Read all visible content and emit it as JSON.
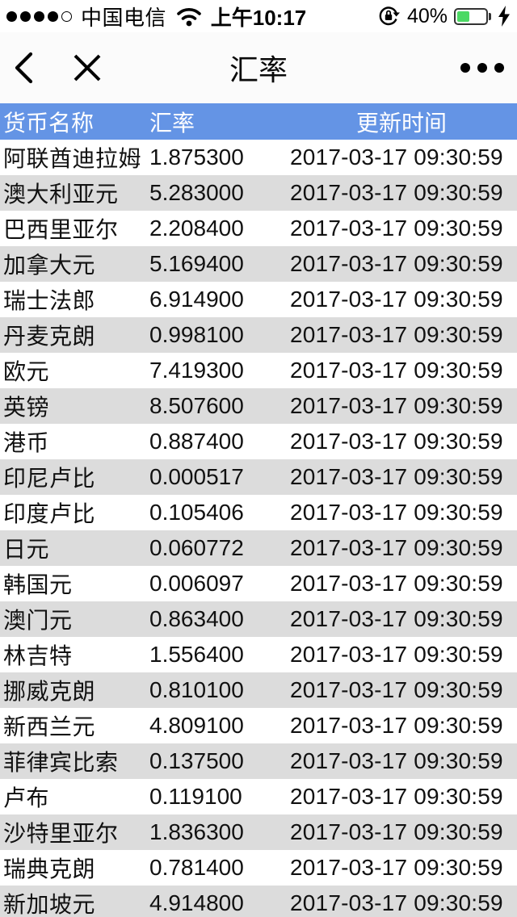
{
  "status_bar": {
    "signal": {
      "filled_dots": 4,
      "empty_dots": 1
    },
    "carrier": "中国电信",
    "time": "上午10:17",
    "battery_percent": "40%",
    "battery_color": "#4cd964",
    "icons": {
      "wifi": "wifi-icon",
      "orientation_lock": "orientation-lock-icon",
      "charging_bolt": "charging-bolt-icon"
    }
  },
  "nav_bar": {
    "title": "汇率",
    "icons": {
      "back": "back-chevron-icon",
      "close": "close-x-icon",
      "more": "more-dots-icon"
    }
  },
  "table": {
    "header_bg": "#6494e5",
    "alt_row_bg": "#dcdcdc",
    "header": {
      "name": "货币名称",
      "rate": "汇率",
      "time": "更新时间"
    },
    "rows": [
      {
        "name": "阿联酋迪拉姆",
        "rate": "1.875300",
        "time": "2017-03-17 09:30:59"
      },
      {
        "name": "澳大利亚元",
        "rate": "5.283000",
        "time": "2017-03-17 09:30:59"
      },
      {
        "name": "巴西里亚尔",
        "rate": "2.208400",
        "time": "2017-03-17 09:30:59"
      },
      {
        "name": "加拿大元",
        "rate": "5.169400",
        "time": "2017-03-17 09:30:59"
      },
      {
        "name": "瑞士法郎",
        "rate": "6.914900",
        "time": "2017-03-17 09:30:59"
      },
      {
        "name": "丹麦克朗",
        "rate": "0.998100",
        "time": "2017-03-17 09:30:59"
      },
      {
        "name": "欧元",
        "rate": "7.419300",
        "time": "2017-03-17 09:30:59"
      },
      {
        "name": "英镑",
        "rate": "8.507600",
        "time": "2017-03-17 09:30:59"
      },
      {
        "name": "港币",
        "rate": "0.887400",
        "time": "2017-03-17 09:30:59"
      },
      {
        "name": "印尼卢比",
        "rate": "0.000517",
        "time": "2017-03-17 09:30:59"
      },
      {
        "name": "印度卢比",
        "rate": "0.105406",
        "time": "2017-03-17 09:30:59"
      },
      {
        "name": "日元",
        "rate": "0.060772",
        "time": "2017-03-17 09:30:59"
      },
      {
        "name": "韩国元",
        "rate": "0.006097",
        "time": "2017-03-17 09:30:59"
      },
      {
        "name": "澳门元",
        "rate": "0.863400",
        "time": "2017-03-17 09:30:59"
      },
      {
        "name": "林吉特",
        "rate": "1.556400",
        "time": "2017-03-17 09:30:59"
      },
      {
        "name": "挪威克朗",
        "rate": "0.810100",
        "time": "2017-03-17 09:30:59"
      },
      {
        "name": "新西兰元",
        "rate": "4.809100",
        "time": "2017-03-17 09:30:59"
      },
      {
        "name": "菲律宾比索",
        "rate": "0.137500",
        "time": "2017-03-17 09:30:59"
      },
      {
        "name": "卢布",
        "rate": "0.119100",
        "time": "2017-03-17 09:30:59"
      },
      {
        "name": "沙特里亚尔",
        "rate": "1.836300",
        "time": "2017-03-17 09:30:59"
      },
      {
        "name": "瑞典克朗",
        "rate": "0.781400",
        "time": "2017-03-17 09:30:59"
      },
      {
        "name": "新加坡元",
        "rate": "4.914800",
        "time": "2017-03-17 09:30:59"
      }
    ]
  }
}
